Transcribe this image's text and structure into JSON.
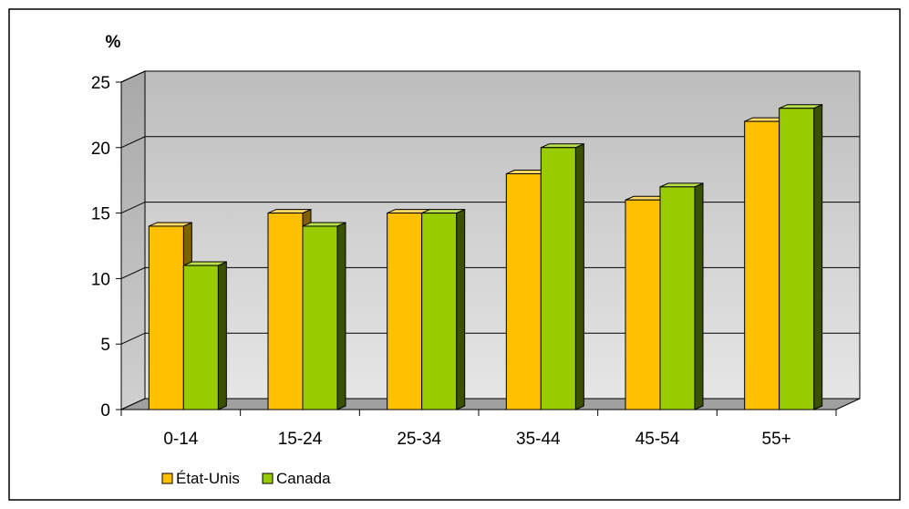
{
  "chart_data": {
    "type": "bar",
    "unit_label": "%",
    "categories": [
      "0-14",
      "15-24",
      "25-34",
      "35-44",
      "45-54",
      "55+"
    ],
    "series": [
      {
        "name": "État-Unis",
        "values": [
          14,
          15,
          15,
          18,
          16,
          22
        ]
      },
      {
        "name": "Canada",
        "values": [
          11,
          14,
          15,
          20,
          17,
          23
        ]
      }
    ],
    "yticks": [
      "0",
      "5",
      "10",
      "15",
      "20",
      "25"
    ],
    "ylim": [
      0,
      25
    ],
    "grid": true,
    "legend_position": "bottom-left",
    "colors": {
      "series": [
        "#ffc000",
        "#99cc00"
      ],
      "series_side": [
        "#806000",
        "#3a5200"
      ],
      "series_top": [
        "#ffd966",
        "#bbe04d"
      ],
      "wall": "#c8c8c8",
      "side_wall": "#b4b4b4",
      "floor": "#a0a0a0"
    }
  }
}
